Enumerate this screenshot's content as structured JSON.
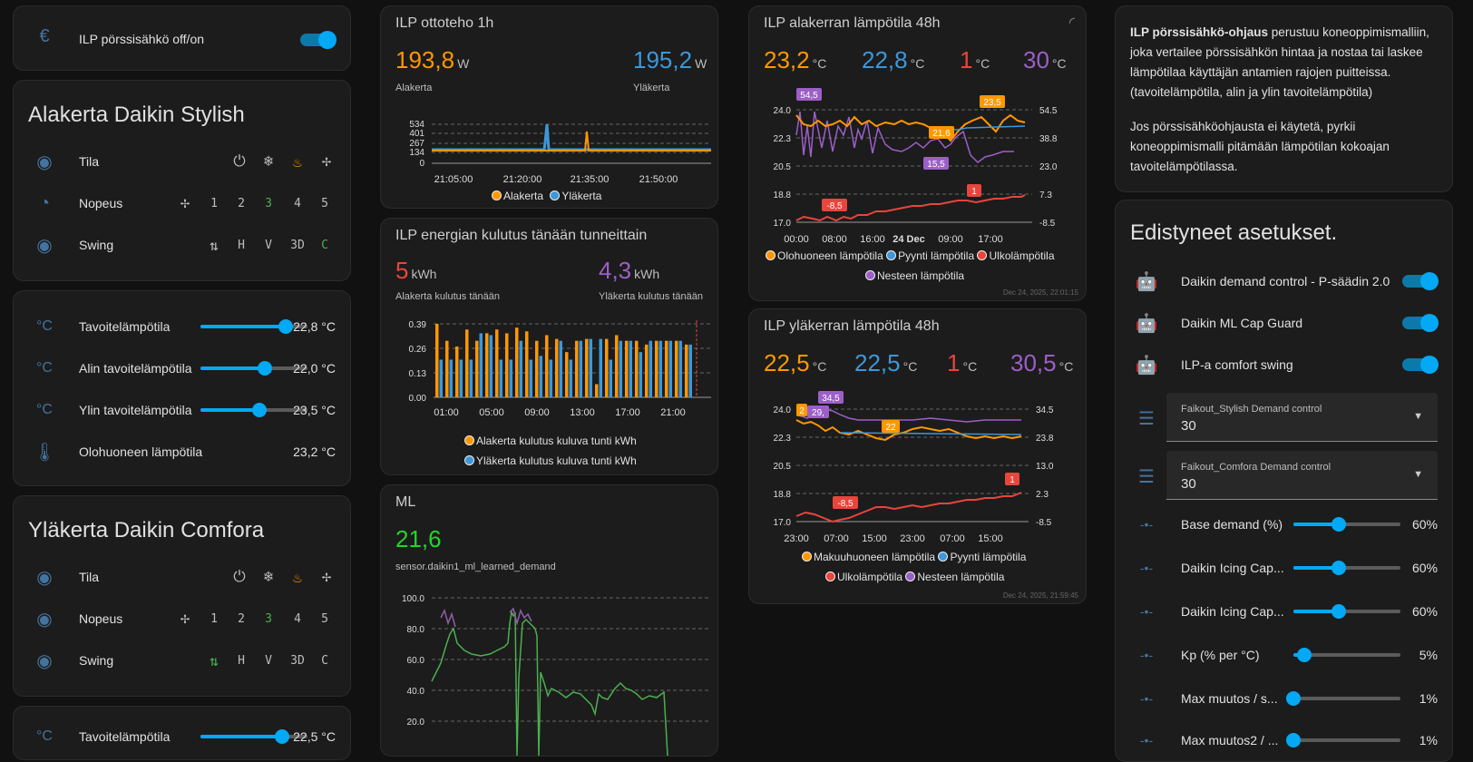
{
  "colors": {
    "orange": "#ff9800",
    "blue": "#3b98da",
    "red": "#e8453c",
    "purple": "#9c5fc7",
    "green": "#21d62b",
    "accent": "#03a9f4"
  },
  "power_card": {
    "label": "ILP pörssisähkö off/on",
    "icon": "euro-icon"
  },
  "ala_daikin": {
    "title": "Alakerta Daikin Stylish",
    "tila": "Tila",
    "nopeus": "Nopeus",
    "swing": "Swing",
    "speeds": [
      "1",
      "2",
      "3",
      "4",
      "5"
    ],
    "swings": [
      "H",
      "V",
      "3D",
      "C"
    ]
  },
  "ala_temps": {
    "rows": [
      {
        "label": "Tavoitelämpötila",
        "value": "22,8 °C",
        "level": 0.8
      },
      {
        "label": "Alin tavoitelämpötila",
        "value": "22,0 °C",
        "level": 0.6
      },
      {
        "label": "Ylin tavoitelämpötila",
        "value": "23,5 °C",
        "level": 0.55
      },
      {
        "label": "Olohuoneen lämpötila",
        "value": "23,2 °C"
      }
    ]
  },
  "yla_daikin": {
    "title": "Yläkerta Daikin Comfora",
    "tila": "Tila",
    "nopeus": "Nopeus",
    "swing": "Swing",
    "speeds": [
      "1",
      "2",
      "3",
      "4",
      "5"
    ],
    "swings": [
      "H",
      "V",
      "3D",
      "C"
    ]
  },
  "yla_temps": {
    "rows": [
      {
        "label": "Tavoitelämpötila",
        "value": "22,5 °C",
        "level": 0.76
      }
    ]
  },
  "otto": {
    "title": "ILP ottoteho 1h",
    "v1": "193,8",
    "u1": "W",
    "l1": "Alakerta",
    "v2": "195,2",
    "u2": "W",
    "l2": "Yläkerta",
    "yticks": [
      "534",
      "401",
      "267",
      "134",
      "0"
    ],
    "xticks": [
      "21:05:00",
      "21:20:00",
      "21:35:00",
      "21:50:00"
    ],
    "legend": [
      "Alakerta",
      "Yläkerta"
    ]
  },
  "energia": {
    "title": "ILP energian kulutus tänään tunneittain",
    "v1": "5",
    "u1": "kWh",
    "l1": "Alakerta kulutus tänään",
    "v2": "4,3",
    "u2": "kWh",
    "l2": "Yläkerta kulutus tänään",
    "yticks": [
      "0.39",
      "0.26",
      "0.13",
      "0.00"
    ],
    "xticks": [
      "01:00",
      "05:00",
      "09:00",
      "13:00",
      "17:00",
      "21:00"
    ],
    "legend": [
      "Alakerta kulutus kuluva tunti kWh",
      "Yläkerta kulutus kuluva tunti kWh"
    ]
  },
  "ml": {
    "title": "ML",
    "value": "21,6",
    "sensor": "sensor.daikin1_ml_learned_demand",
    "yticks": [
      "100.0",
      "80.0",
      "60.0",
      "40.0",
      "20.0"
    ]
  },
  "ala_48": {
    "title": "ILP alakerran lämpötila 48h",
    "values": [
      {
        "v": "23,2",
        "u": "°C"
      },
      {
        "v": "22,8",
        "u": "°C"
      },
      {
        "v": "1",
        "u": "°C"
      },
      {
        "v": "30",
        "u": "°C"
      }
    ],
    "yleft": [
      "24.0",
      "22.3",
      "20.5",
      "18.8",
      "17.0"
    ],
    "yright": [
      "54.5",
      "38.8",
      "23.0",
      "7.3",
      "-8.5"
    ],
    "xticks": [
      "00:00",
      "08:00",
      "16:00",
      "24 Dec",
      "09:00",
      "17:00"
    ],
    "tags": [
      "54,5",
      "23,5",
      "21,6",
      "15,5",
      "-8,5",
      "1"
    ],
    "legend": [
      "Olohuoneen lämpötila",
      "Pyynti lämpötila",
      "Ulkolämpötila",
      "Nesteen lämpötila"
    ],
    "timestamp": "Dec 24, 2025, 22:01:15"
  },
  "yla_48": {
    "title": "ILP yläkerran lämpötila 48h",
    "values": [
      {
        "v": "22,5",
        "u": "°C"
      },
      {
        "v": "22,5",
        "u": "°C"
      },
      {
        "v": "1",
        "u": "°C"
      },
      {
        "v": "30,5",
        "u": "°C"
      }
    ],
    "yleft": [
      "24.0",
      "22.3",
      "20.5",
      "18.8",
      "17.0"
    ],
    "yright": [
      "34.5",
      "23.8",
      "13.0",
      "2.3",
      "-8.5"
    ],
    "xticks": [
      "23:00",
      "07:00",
      "15:00",
      "23:00",
      "07:00",
      "15:00"
    ],
    "tags": [
      "2",
      "29,",
      "34,5",
      "22",
      "-8,5",
      "1"
    ],
    "legend": [
      "Makuuhuoneen lämpötila",
      "Pyynti lämpötila",
      "Ulkolämpötila",
      "Nesteen lämpötila"
    ],
    "timestamp": "Dec 24, 2025, 21:59:45"
  },
  "info": {
    "bold": "ILP pörssisähkö-ohjaus",
    "p1": " perustuu koneoppimismalliin, joka vertailee pörssisähkön hintaa ja nostaa tai laskee lämpötilaa käyttäjän antamien rajojen puitteissa. (tavoitelämpötila, alin ja ylin tavoitelämpötila)",
    "p2": "Jos pörssisähköohjausta ei käytetä, pyrkii koneoppimismalli pitämään lämpötilan kokoajan tavoitelämpötilassa."
  },
  "adv": {
    "title": "Edistyneet asetukset.",
    "toggles": [
      "Daikin demand control - P-säädin 2.0",
      "Daikin ML Cap Guard",
      "ILP-a comfort swing"
    ],
    "selects": [
      {
        "label": "Faikout_Stylish Demand control",
        "value": "30"
      },
      {
        "label": "Faikout_Comfora Demand control",
        "value": "30"
      }
    ],
    "sliders": [
      {
        "label": "Base demand (%)",
        "value": "60%",
        "level": 0.42
      },
      {
        "label": "Daikin Icing Cap...",
        "value": "60%",
        "level": 0.42
      },
      {
        "label": "Daikin Icing Cap...",
        "value": "60%",
        "level": 0.42
      },
      {
        "label": "Kp (% per °C)",
        "value": "5%",
        "level": 0.1
      },
      {
        "label": "Max muutos / s...",
        "value": "1%",
        "level": 0.0
      },
      {
        "label": "Max muutos2 / ...",
        "value": "1%",
        "level": 0.0
      }
    ]
  }
}
